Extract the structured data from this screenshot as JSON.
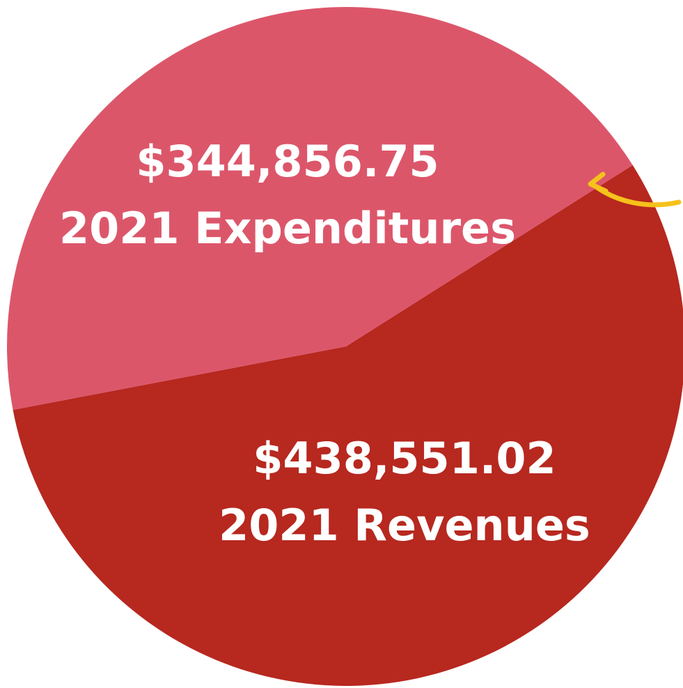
{
  "chart_data": {
    "type": "pie",
    "categories": [
      "2021 Revenues",
      "2021 Expenditures"
    ],
    "values": [
      438551.02,
      344856.75
    ],
    "value_labels": [
      "$438,551.02",
      "$344,856.75"
    ],
    "colors": [
      "#b7281f",
      "#dc566a"
    ]
  }
}
